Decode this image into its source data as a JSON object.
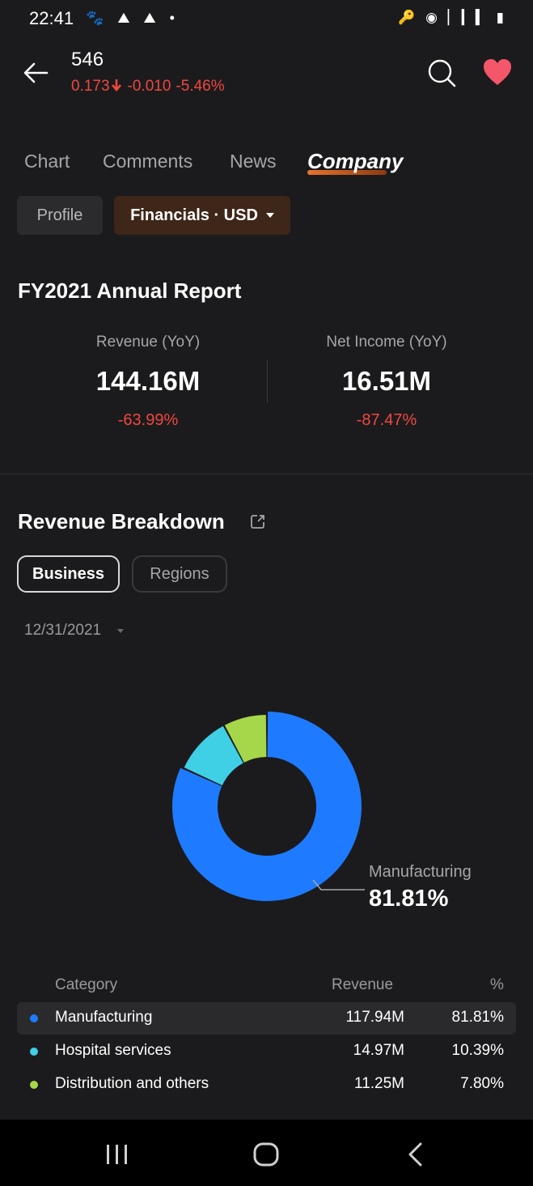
{
  "status_bar": {
    "time": "22:41",
    "left_icons": "🐾 ⛰ ⛰ •",
    "right_icons": "🔑 ◉ ▏▎▍ ▮"
  },
  "header": {
    "ticker": "546",
    "price": "0.173",
    "change": "-0.010",
    "change_pct": "-5.46%",
    "down_color": "#f0473e",
    "favorite_color": "#f4566a"
  },
  "tabs": [
    {
      "label": "Chart",
      "active": false
    },
    {
      "label": "Comments",
      "active": false
    },
    {
      "label": "News",
      "active": false
    },
    {
      "label": "Company",
      "active": true
    }
  ],
  "subtabs": {
    "profile": "Profile",
    "financials": "Financials · USD"
  },
  "annual_report": {
    "title": "FY2021 Annual Report",
    "revenue": {
      "label": "Revenue (YoY)",
      "value": "144.16M",
      "change": "-63.99%"
    },
    "net_income": {
      "label": "Net Income (YoY)",
      "value": "16.51M",
      "change": "-87.47%"
    }
  },
  "revenue_breakdown": {
    "title": "Revenue Breakdown",
    "segments": {
      "business": "Business",
      "regions": "Regions",
      "selected": "Business"
    },
    "date": "12/31/2021",
    "callout": {
      "label": "Manufacturing",
      "value": "81.81%"
    },
    "table": {
      "headers": {
        "category": "Category",
        "revenue": "Revenue",
        "pct": "%"
      },
      "rows": [
        {
          "category": "Manufacturing",
          "revenue": "117.94M",
          "pct": "81.81%",
          "color": "#1e7bff",
          "share": 81.81
        },
        {
          "category": "Hospital services",
          "revenue": "14.97M",
          "pct": "10.39%",
          "color": "#3fd0e6",
          "share": 10.39
        },
        {
          "category": "Distribution and others",
          "revenue": "11.25M",
          "pct": "7.80%",
          "color": "#a6d64a",
          "share": 7.8
        }
      ]
    }
  }
}
